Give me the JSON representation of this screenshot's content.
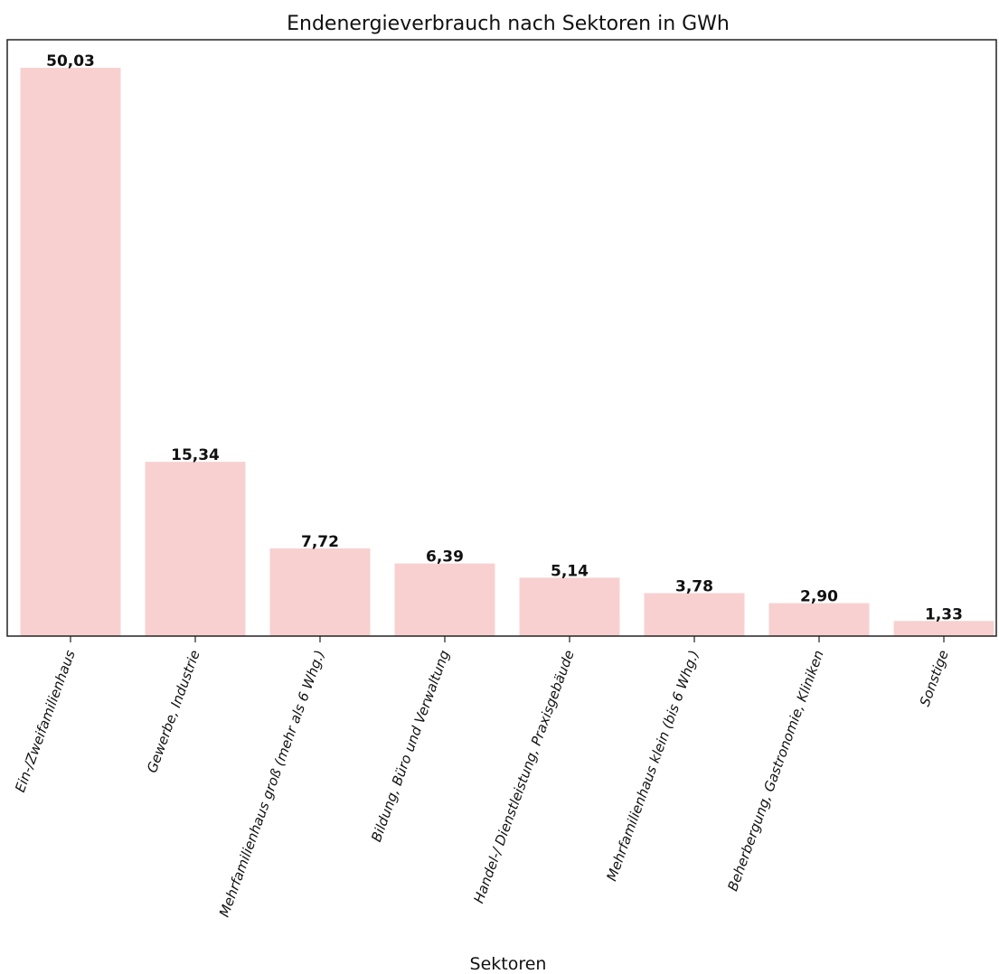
{
  "chart_data": {
    "type": "bar",
    "title": "Endenergieverbrauch nach Sektoren in GWh",
    "xlabel": "Sektoren",
    "ylabel": "",
    "categories": [
      "Ein-/Zweifamilienhaus",
      "Gewerbe, Industrie",
      "Mehrfamilienhaus groß (mehr als 6 Whg.)",
      "Bildung, Büro und Verwaltung",
      "Handel-/ Dienstleistung, Praxisgebäude",
      "Mehrfamilienhaus klein (bis 6 Whg.)",
      "Beherbergung, Gastronomie, Kliniken",
      "Sonstige"
    ],
    "values": [
      50.03,
      15.34,
      7.72,
      6.39,
      5.14,
      3.78,
      2.9,
      1.33
    ],
    "value_labels": [
      "50,03",
      "15,34",
      "7,72",
      "6,39",
      "5,14",
      "3,78",
      "2,90",
      "1,33"
    ],
    "ylim": [
      0,
      52.5
    ],
    "grid": false,
    "legend": "none",
    "colors": {
      "bar": "#f8d0d0",
      "axis": "#222222"
    }
  }
}
